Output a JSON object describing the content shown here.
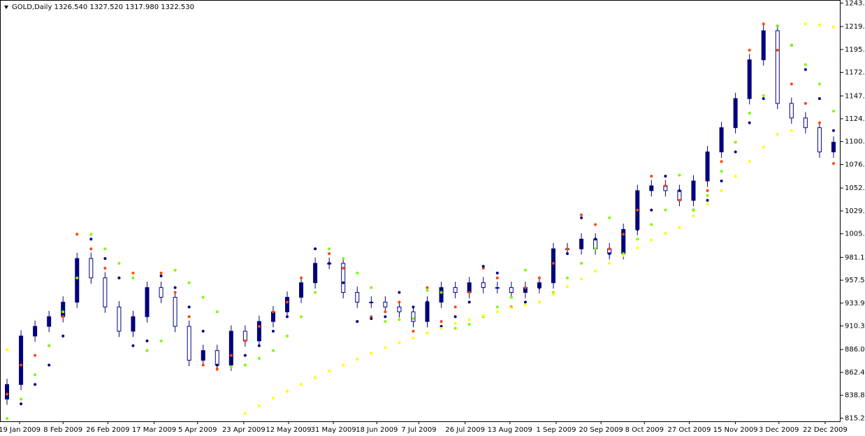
{
  "chart_data": {
    "type": "candlestick",
    "title": "GOLD,Daily  1326.540 1327.520 1317.980 1322.530",
    "xlim": [
      -0.5,
      59.5
    ],
    "xticks": [
      {
        "value": 0.9,
        "label": "19 Jan 2009"
      },
      {
        "value": 4.0,
        "label": "8 Feb 2009"
      },
      {
        "value": 7.2,
        "label": "26 Feb 2009"
      },
      {
        "value": 10.5,
        "label": "17 Mar 2009"
      },
      {
        "value": 13.6,
        "label": "5 Apr 2009"
      },
      {
        "value": 16.9,
        "label": "23 Apr 2009"
      },
      {
        "value": 20.1,
        "label": "12 May 2009"
      },
      {
        "value": 23.3,
        "label": "31 May 2009"
      },
      {
        "value": 26.4,
        "label": "18 Jun 2009"
      },
      {
        "value": 29.4,
        "label": "7 Jul 2009"
      },
      {
        "value": 32.7,
        "label": "26 Jul 2009"
      },
      {
        "value": 35.9,
        "label": "13 Aug 2009"
      },
      {
        "value": 39.2,
        "label": "1 Sep 2009"
      },
      {
        "value": 42.4,
        "label": "20 Sep 2009"
      },
      {
        "value": 45.5,
        "label": "8 Oct 2009"
      },
      {
        "value": 48.7,
        "label": "27 Oct 2009"
      },
      {
        "value": 52.0,
        "label": "15 Nov 2009"
      },
      {
        "value": 55.1,
        "label": "3 Dec 2009"
      },
      {
        "value": 58.4,
        "label": "22 Dec 2009"
      }
    ],
    "ylim": [
      812,
      1246
    ],
    "yticks": [
      {
        "value": 1243.58,
        "label": "1243.580"
      },
      {
        "value": 1219.27,
        "label": "1219.270"
      },
      {
        "value": 1195.675,
        "label": "1195.675"
      },
      {
        "value": 1172.08,
        "label": "1172.080"
      },
      {
        "value": 1147.77,
        "label": "1147.770"
      },
      {
        "value": 1124.175,
        "label": "1124.175"
      },
      {
        "value": 1100.58,
        "label": "1100.580"
      },
      {
        "value": 1076.985,
        "label": "1076.985"
      },
      {
        "value": 1052.675,
        "label": "1052.675"
      },
      {
        "value": 1029.08,
        "label": "1029.080"
      },
      {
        "value": 1005.485,
        "label": "1005.485"
      },
      {
        "value": 981.175,
        "label": "981.175"
      },
      {
        "value": 957.58,
        "label": "957.580"
      },
      {
        "value": 933.985,
        "label": "933.985"
      },
      {
        "value": 910.39,
        "label": "910.390"
      },
      {
        "value": 886.08,
        "label": "886.080"
      },
      {
        "value": 862.485,
        "label": "862.485"
      },
      {
        "value": 838.89,
        "label": "838.890"
      },
      {
        "value": 815.295,
        "label": "815.295"
      }
    ],
    "candle_color": "#000080",
    "open": [
      835,
      850,
      900,
      910,
      920,
      935,
      980,
      960,
      930,
      905,
      920,
      950,
      940,
      910,
      875,
      885,
      870,
      905,
      895,
      915,
      925,
      940,
      955,
      975,
      975,
      945,
      935,
      935,
      930,
      925,
      915,
      935,
      950,
      945,
      955,
      950,
      950,
      945,
      950,
      955,
      990,
      990,
      1000,
      990,
      985,
      1010,
      1050,
      1055,
      1050,
      1040,
      1060,
      1090,
      1115,
      1145,
      1185,
      1215,
      1140,
      1125,
      1115,
      1090
    ],
    "high": [
      856,
      906,
      916,
      926,
      941,
      986,
      986,
      966,
      936,
      926,
      956,
      956,
      946,
      916,
      891,
      891,
      911,
      911,
      921,
      931,
      946,
      961,
      981,
      981,
      981,
      951,
      941,
      941,
      936,
      931,
      941,
      956,
      956,
      961,
      961,
      956,
      956,
      956,
      961,
      996,
      996,
      1006,
      1006,
      996,
      1016,
      1056,
      1061,
      1061,
      1056,
      1066,
      1096,
      1121,
      1151,
      1191,
      1221,
      1221,
      1146,
      1131,
      1121,
      1106
    ],
    "low": [
      829,
      844,
      894,
      904,
      914,
      929,
      954,
      924,
      899,
      899,
      914,
      934,
      904,
      869,
      869,
      864,
      864,
      889,
      889,
      909,
      919,
      934,
      949,
      969,
      939,
      929,
      929,
      924,
      919,
      909,
      909,
      929,
      939,
      939,
      944,
      944,
      939,
      939,
      944,
      949,
      984,
      984,
      984,
      979,
      979,
      1004,
      1044,
      1044,
      1034,
      1034,
      1054,
      1084,
      1109,
      1139,
      1179,
      1134,
      1119,
      1109,
      1084,
      1084
    ],
    "close": [
      850,
      900,
      910,
      920,
      935,
      980,
      960,
      930,
      905,
      920,
      950,
      940,
      910,
      875,
      885,
      870,
      905,
      895,
      915,
      925,
      940,
      955,
      975,
      975,
      945,
      935,
      935,
      930,
      925,
      915,
      935,
      950,
      945,
      955,
      950,
      950,
      945,
      950,
      955,
      990,
      990,
      1000,
      990,
      985,
      1010,
      1050,
      1055,
      1050,
      1040,
      1060,
      1090,
      1115,
      1145,
      1185,
      1215,
      1140,
      1125,
      1115,
      1090,
      1100
    ],
    "dot_series": [
      {
        "color": "#ff4500",
        "values": [
          840,
          870,
          880,
          890,
          920,
          1005,
          990,
          970,
          960,
          965,
          885,
          965,
          945,
          920,
          870,
          866,
          880,
          895,
          910,
          925,
          935,
          960,
          990,
          985,
          970,
          915,
          920,
          925,
          935,
          905,
          950,
          915,
          930,
          945,
          970,
          960,
          930,
          950,
          960,
          975,
          990,
          1025,
          1015,
          990,
          1005,
          1030,
          1065,
          1055,
          1040,
          1030,
          1050,
          1080,
          1100,
          1195,
          1222,
          1195,
          1160,
          1140,
          1120,
          1078
        ]
      },
      {
        "color": "#000080",
        "values": [
          null,
          830,
          850,
          870,
          900,
          940,
          1000,
          980,
          960,
          890,
          895,
          962,
          950,
          930,
          905,
          870,
          872,
          880,
          890,
          905,
          920,
          950,
          990,
          975,
          955,
          915,
          918,
          920,
          945,
          930,
          935,
          910,
          920,
          935,
          972,
          965,
          940,
          935,
          950,
          965,
          985,
          1022,
          1000,
          985,
          995,
          1010,
          1030,
          1065,
          1050,
          1030,
          1040,
          1060,
          1090,
          1120,
          1145,
          1220,
          1200,
          1175,
          1145,
          1112
        ]
      },
      {
        "color": "#7cfc00",
        "values": [
          815,
          835,
          860,
          890,
          925,
          960,
          1005,
          990,
          975,
          960,
          885,
          895,
          968,
          955,
          940,
          925,
          868,
          870,
          877,
          885,
          900,
          920,
          945,
          990,
          980,
          965,
          950,
          915,
          917,
          918,
          947,
          945,
          908,
          912,
          920,
          930,
          940,
          968,
          935,
          945,
          960,
          975,
          990,
          1022,
          985,
          1000,
          1015,
          1030,
          1066,
          1030,
          1045,
          1070,
          1100,
          1130,
          1148,
          1220,
          1200,
          1180,
          1160,
          1132
        ]
      },
      {
        "color": "#ffff00",
        "values": [
          886,
          null,
          null,
          null,
          null,
          null,
          null,
          null,
          null,
          null,
          null,
          null,
          null,
          null,
          null,
          null,
          null,
          820,
          828,
          836,
          843,
          850,
          857,
          864,
          870,
          876,
          882,
          888,
          893,
          898,
          903,
          908,
          913,
          917,
          921,
          925,
          929,
          932,
          935,
          943,
          951,
          959,
          967,
          975,
          983,
          991,
          999,
          1006,
          1012,
          1024,
          1036,
          1050,
          1065,
          1080,
          1095,
          1108,
          1112,
          1222,
          1221,
          1219
        ]
      }
    ]
  }
}
